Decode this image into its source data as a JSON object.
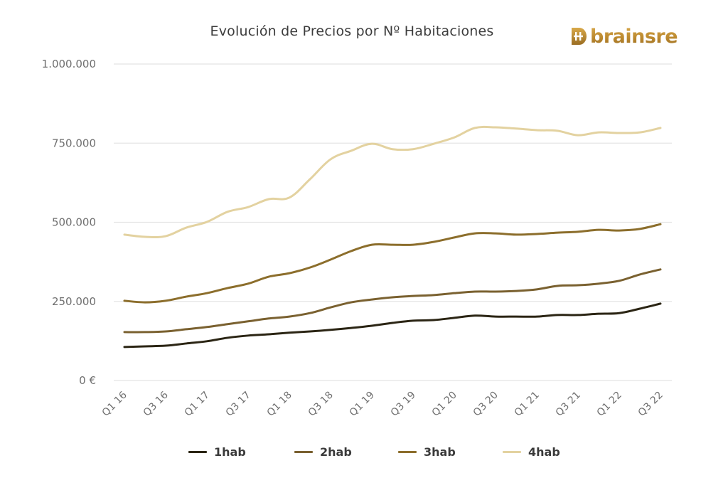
{
  "header": {
    "title": "Evolución de Precios por Nº Habitaciones",
    "logo_text": "brainsre",
    "logo_icon": "brainsre-logo-icon"
  },
  "colors": {
    "1hab": "#2b2514",
    "2hab": "#7a6130",
    "3hab": "#8c6e2c",
    "4hab": "#e3d2a0",
    "grid": "#e4e4e4",
    "brand": "#c0922f"
  },
  "chart_data": {
    "type": "line",
    "title": "Evolución de Precios por Nº Habitaciones",
    "xlabel": "",
    "ylabel": "",
    "ylim": [
      0,
      1000000
    ],
    "grid": true,
    "legend_position": "bottom",
    "y_ticks": [
      0,
      250000,
      500000,
      750000,
      1000000
    ],
    "y_tick_labels": [
      "0 €",
      "250.000",
      "500.000",
      "750.000",
      "1.000.000"
    ],
    "x": [
      "Q1 16",
      "Q2 16",
      "Q3 16",
      "Q4 16",
      "Q1 17",
      "Q2 17",
      "Q3 17",
      "Q4 17",
      "Q1 18",
      "Q2 18",
      "Q3 18",
      "Q4 18",
      "Q1 19",
      "Q2 19",
      "Q3 19",
      "Q4 19",
      "Q1 20",
      "Q2 20",
      "Q3 20",
      "Q4 20",
      "Q1 21",
      "Q2 21",
      "Q3 21",
      "Q4 21",
      "Q1 22",
      "Q2 22",
      "Q3 22"
    ],
    "x_tick_labels": [
      "Q1 16",
      "Q3 16",
      "Q1 17",
      "Q3 17",
      "Q1 18",
      "Q3 18",
      "Q1 19",
      "Q3 19",
      "Q1 20",
      "Q3 20",
      "Q1 21",
      "Q3 21",
      "Q1 22",
      "Q3 22"
    ],
    "series": [
      {
        "name": "1hab",
        "values": [
          106000,
          108000,
          110000,
          117000,
          124000,
          135000,
          142000,
          146000,
          151000,
          155000,
          160000,
          166000,
          173000,
          182000,
          189000,
          191000,
          198000,
          205000,
          202000,
          202000,
          202000,
          207000,
          207000,
          211000,
          213000,
          227000,
          243000
        ]
      },
      {
        "name": "2hab",
        "values": [
          153000,
          153000,
          155000,
          162000,
          169000,
          178000,
          187000,
          196000,
          202000,
          213000,
          231000,
          247000,
          256000,
          263000,
          267000,
          270000,
          276000,
          281000,
          281000,
          283000,
          288000,
          299000,
          301000,
          306000,
          315000,
          335000,
          351000
        ]
      },
      {
        "name": "3hab",
        "values": [
          252000,
          247000,
          252000,
          265000,
          276000,
          292000,
          306000,
          328000,
          339000,
          357000,
          382000,
          409000,
          429000,
          429000,
          429000,
          438000,
          452000,
          465000,
          465000,
          461000,
          463000,
          467000,
          470000,
          476000,
          474000,
          479000,
          494000
        ]
      },
      {
        "name": "4hab",
        "values": [
          461000,
          454000,
          456000,
          483000,
          501000,
          533000,
          548000,
          573000,
          578000,
          636000,
          699000,
          726000,
          748000,
          731000,
          731000,
          748000,
          768000,
          798000,
          800000,
          796000,
          791000,
          789000,
          775000,
          784000,
          782000,
          784000,
          798000
        ]
      }
    ]
  },
  "legend": {
    "items": [
      {
        "label": "1hab",
        "key": "1hab"
      },
      {
        "label": "2hab",
        "key": "2hab"
      },
      {
        "label": "3hab",
        "key": "3hab"
      },
      {
        "label": "4hab",
        "key": "4hab"
      }
    ]
  }
}
